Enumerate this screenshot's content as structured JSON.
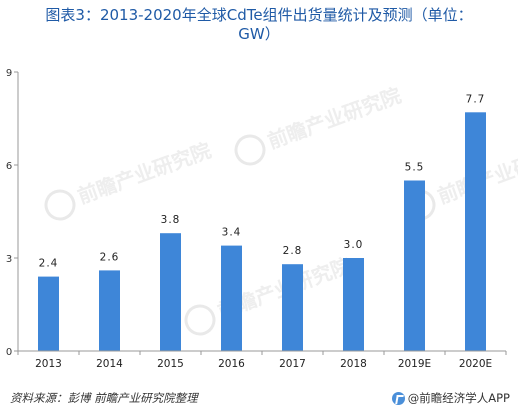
{
  "title": {
    "line1": "图表3：2013-2020年全球CdTe组件出货量统计及预测（单位：",
    "line2": "GW）"
  },
  "chart_data": {
    "type": "bar",
    "title": "图表3：2013-2020年全球CdTe组件出货量统计及预测（单位：GW）",
    "categories": [
      "2013",
      "2014",
      "2015",
      "2016",
      "2017",
      "2018",
      "2019E",
      "2020E"
    ],
    "values": [
      2.4,
      2.6,
      3.8,
      3.4,
      2.8,
      3.0,
      5.5,
      7.7
    ],
    "data_labels": [
      "2.4",
      "2.6",
      "3.8",
      "3.4",
      "2.8",
      "3.0",
      "5.5",
      "7.7"
    ],
    "ylim": [
      0,
      9
    ],
    "yticks": [
      0,
      3,
      6,
      9
    ],
    "ytick_labels": [
      "0",
      "3",
      "6",
      "9"
    ],
    "xlabel": "",
    "ylabel": "",
    "grid": false,
    "bar_color": "#3e86d8"
  },
  "footer": {
    "source": "资料来源：彭博  前瞻产业研究院整理",
    "brand": "@前瞻经济学人APP"
  },
  "watermark": {
    "text": "前瞻产业研究院"
  }
}
